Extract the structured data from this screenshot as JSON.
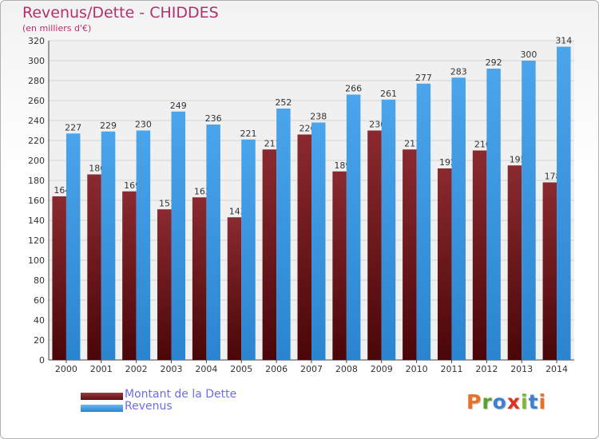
{
  "chart_data": {
    "type": "bar",
    "title": "Revenus/Dette - CHIDDES",
    "subtitle": "(en milliers d'€)",
    "categories": [
      "2000",
      "2001",
      "2002",
      "2003",
      "2004",
      "2005",
      "2006",
      "2007",
      "2008",
      "2009",
      "2010",
      "2011",
      "2012",
      "2013",
      "2014"
    ],
    "series": [
      {
        "name": "Montant de la Dette",
        "color": "#7b2227",
        "values": [
          164,
          186,
          169,
          151,
          163,
          143,
          211,
          226,
          189,
          230,
          211,
          192,
          210,
          195,
          178
        ]
      },
      {
        "name": "Revenus",
        "color": "#3f9ae3",
        "values": [
          227,
          229,
          230,
          249,
          236,
          221,
          252,
          238,
          266,
          261,
          277,
          283,
          292,
          300,
          314
        ]
      }
    ],
    "ylim": [
      0,
      320
    ],
    "yticks": [
      0,
      20,
      40,
      60,
      80,
      100,
      120,
      140,
      160,
      180,
      200,
      220,
      240,
      260,
      280,
      300,
      320
    ],
    "grid": true,
    "legend_position": "bottom-left"
  },
  "logo_text": "Proxiti",
  "colors": {
    "title": "#b5306b",
    "legend_text": "#6d6ee6",
    "logo": [
      "#e8722a",
      "#5aa02c",
      "#3f7fd0",
      "#e03020",
      "#7cb82f",
      "#3f7fd0",
      "#e8722a"
    ]
  }
}
